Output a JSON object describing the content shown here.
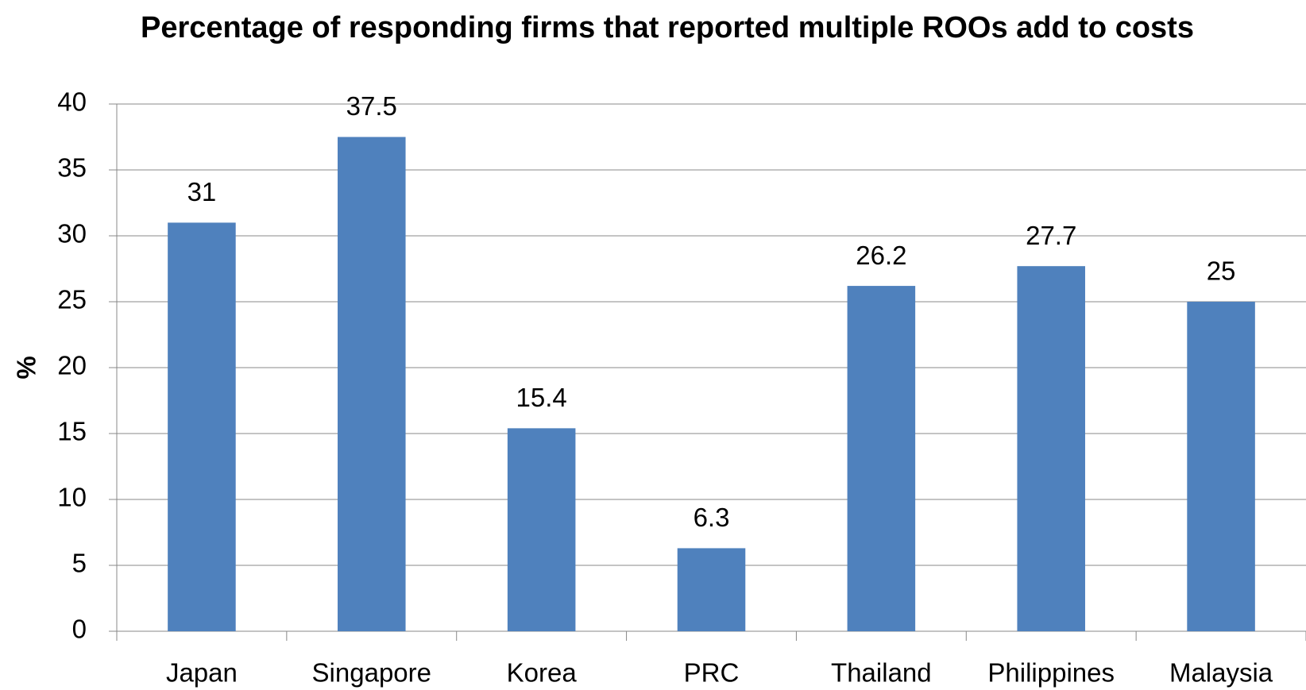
{
  "chart_data": {
    "type": "bar",
    "title": "Percentage of responding firms that reported multiple ROOs add to costs",
    "y_label": "%",
    "categories": [
      "Japan",
      "Singapore",
      "Korea",
      "PRC",
      "Thailand",
      "Philippines",
      "Malaysia"
    ],
    "values": [
      31,
      37.5,
      15.4,
      6.3,
      26.2,
      27.7,
      25
    ],
    "color": "#4f81bd",
    "ylim": [
      0,
      40
    ],
    "yticks": [
      0,
      5,
      10,
      15,
      20,
      25,
      30,
      35,
      40
    ],
    "grid": true,
    "data_labels": true
  }
}
